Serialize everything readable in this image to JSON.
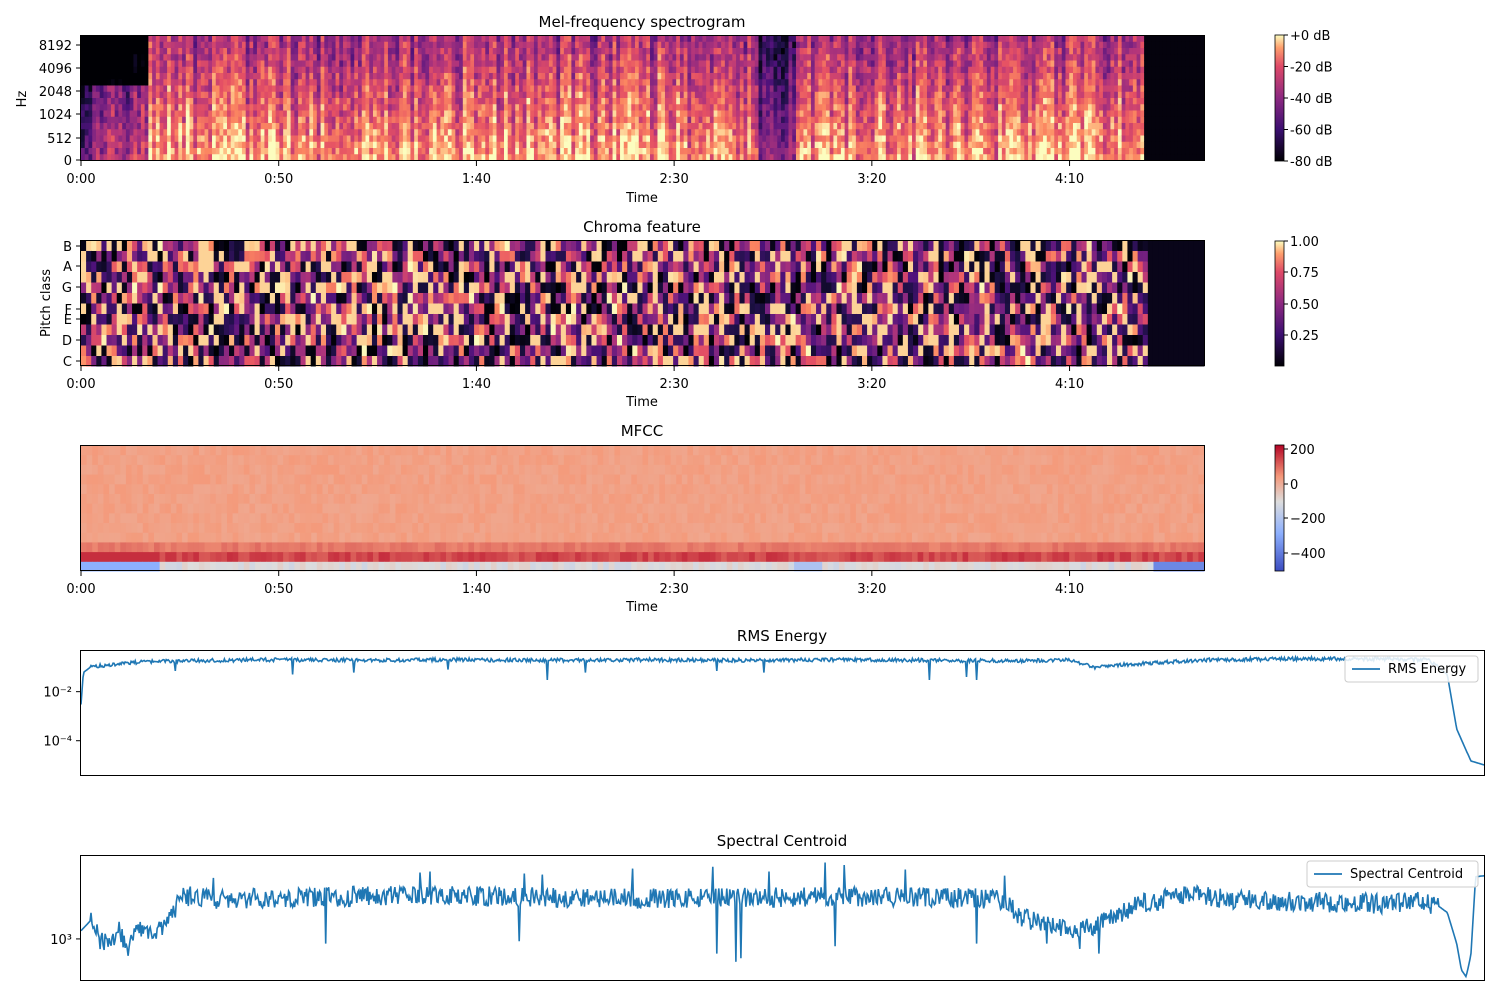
{
  "chart_data": [
    {
      "type": "heatmap",
      "title": "Mel-frequency spectrogram",
      "xlabel": "Time",
      "ylabel": "Hz",
      "x_ticks": [
        "0:00",
        "0:50",
        "1:40",
        "2:30",
        "3:20",
        "4:10"
      ],
      "x_tick_seconds": [
        0,
        50,
        100,
        150,
        200,
        250
      ],
      "xlim_seconds": [
        0,
        284
      ],
      "y_ticks": [
        "0",
        "512",
        "1024",
        "2048",
        "4096",
        "8192"
      ],
      "y_scale": "mel",
      "colormap": "magma",
      "colorbar_ticks": [
        "+0 dB",
        "-20 dB",
        "-40 dB",
        "-60 dB",
        "-80 dB"
      ],
      "colorbar_range": [
        -80,
        0
      ]
    },
    {
      "type": "heatmap",
      "title": "Chroma feature",
      "xlabel": "Time",
      "ylabel": "Pitch class",
      "x_ticks": [
        "0:00",
        "0:50",
        "1:40",
        "2:30",
        "3:20",
        "4:10"
      ],
      "x_tick_seconds": [
        0,
        50,
        100,
        150,
        200,
        250
      ],
      "xlim_seconds": [
        0,
        284
      ],
      "y_ticks": [
        "C",
        "D",
        "E",
        "F",
        "G",
        "A",
        "B"
      ],
      "colormap": "magma",
      "colorbar_ticks": [
        "1.00",
        "0.75",
        "0.50",
        "0.25"
      ],
      "colorbar_range": [
        0,
        1
      ]
    },
    {
      "type": "heatmap",
      "title": "MFCC",
      "xlabel": "Time",
      "x_ticks": [
        "0:00",
        "0:50",
        "1:40",
        "2:30",
        "3:20",
        "4:10"
      ],
      "x_tick_seconds": [
        0,
        50,
        100,
        150,
        200,
        250
      ],
      "xlim_seconds": [
        0,
        284
      ],
      "colormap": "coolwarm",
      "colorbar_ticks": [
        "200",
        "0",
        "−200",
        "−400"
      ],
      "colorbar_range": [
        -500,
        230
      ]
    },
    {
      "type": "line",
      "title": "RMS Energy",
      "y_scale": "log",
      "y_ticks": [
        "10⁻²",
        "10⁻⁴"
      ],
      "ylim": [
        4e-06,
        0.5
      ],
      "grid": false,
      "legend": "top-right",
      "color": "#1f77b4",
      "series": [
        {
          "name": "RMS Energy",
          "x": [
            0,
            0.5,
            2,
            5,
            10,
            20,
            40,
            60,
            80,
            100,
            120,
            140,
            160,
            180,
            200,
            210,
            215,
            220,
            230,
            240,
            260,
            270,
            280,
            286,
            290,
            292,
            295,
            298
          ],
          "y": [
            0.003,
            0.06,
            0.1,
            0.12,
            0.15,
            0.18,
            0.2,
            0.19,
            0.2,
            0.19,
            0.2,
            0.19,
            0.2,
            0.19,
            0.18,
            0.2,
            0.1,
            0.12,
            0.16,
            0.2,
            0.22,
            0.22,
            0.21,
            0.2,
            0.05,
            0.0003,
            1.5e-05,
            1e-05
          ],
          "dips_x": [
            20,
            45,
            58,
            78,
            99,
            107,
            135,
            145,
            180,
            188,
            190
          ],
          "dips_y": [
            0.07,
            0.05,
            0.06,
            0.08,
            0.03,
            0.06,
            0.07,
            0.06,
            0.03,
            0.04,
            0.03
          ]
        }
      ]
    },
    {
      "type": "line",
      "title": "Spectral Centroid",
      "y_scale": "log",
      "y_ticks": [
        "10³"
      ],
      "ylim": [
        400,
        6500
      ],
      "grid": false,
      "legend": "top-right",
      "color": "#1f77b4",
      "series": [
        {
          "name": "Spectral Centroid",
          "x": [
            0,
            2,
            4,
            6,
            8,
            10,
            12,
            15,
            18,
            20,
            22,
            26,
            30,
            40,
            60,
            80,
            100,
            120,
            140,
            160,
            180,
            190,
            195,
            200,
            205,
            210,
            215,
            225,
            235,
            245,
            260,
            275,
            285,
            288,
            290,
            292,
            293,
            294,
            295,
            296,
            298
          ],
          "y": [
            1200,
            1500,
            1000,
            900,
            1200,
            800,
            1300,
            1100,
            1400,
            2000,
            2600,
            2500,
            2400,
            2500,
            2600,
            2600,
            2550,
            2450,
            2500,
            2600,
            2500,
            2500,
            2400,
            1600,
            1400,
            1200,
            1300,
            2200,
            2700,
            2400,
            2300,
            2200,
            2300,
            2100,
            1800,
            900,
            500,
            430,
            700,
            4000,
            4100
          ],
          "spikes_x": [
            28,
            72,
            74,
            94,
            98,
            117,
            134,
            146,
            158,
            162,
            175,
            196
          ],
          "spikes_y": [
            3900,
            4400,
            4500,
            4300,
            4200,
            4800,
            5000,
            4500,
            5500,
            5200,
            4700,
            4100
          ],
          "dips_x": [
            52,
            93,
            135,
            139,
            140,
            160,
            190,
            205,
            212,
            216
          ],
          "dips_y": [
            900,
            950,
            720,
            600,
            650,
            850,
            900,
            900,
            800,
            720
          ]
        }
      ]
    }
  ]
}
